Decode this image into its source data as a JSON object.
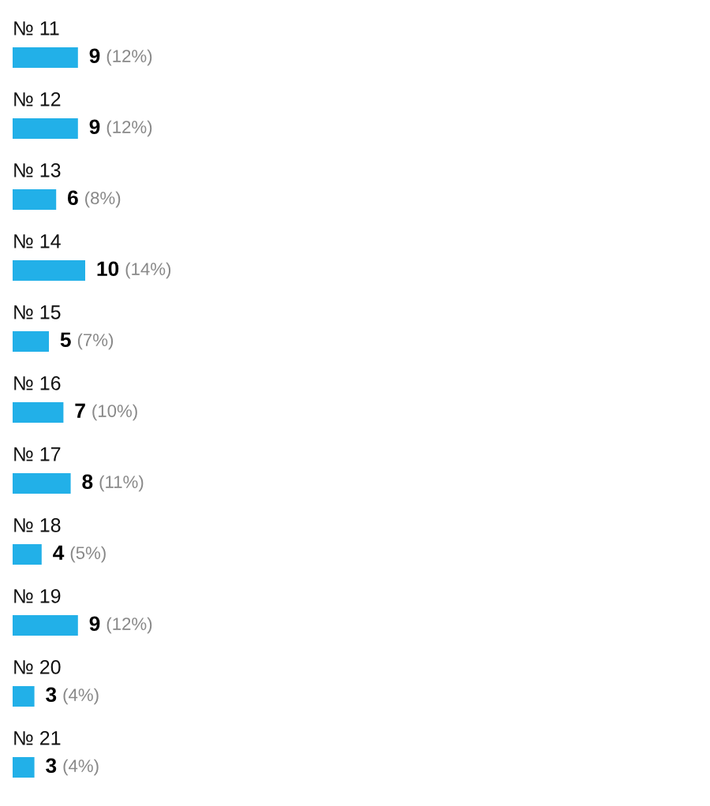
{
  "chart_data": {
    "type": "bar",
    "orientation": "horizontal",
    "categories": [
      "№ 11",
      "№ 12",
      "№ 13",
      "№ 14",
      "№ 15",
      "№ 16",
      "№ 17",
      "№ 18",
      "№ 19",
      "№ 20",
      "№ 21"
    ],
    "values": [
      9,
      9,
      6,
      10,
      5,
      7,
      8,
      4,
      9,
      3,
      3
    ],
    "value_labels": [
      "9 (12%)",
      "9 (12%)",
      "6 (8%)",
      "10 (14%)",
      "5 (7%)",
      "7 (10%)",
      "8 (11%)",
      "4 (5%)",
      "9 (12%)",
      "3 (4%)",
      "3 (4%)"
    ],
    "color": "#22b0e8"
  }
}
